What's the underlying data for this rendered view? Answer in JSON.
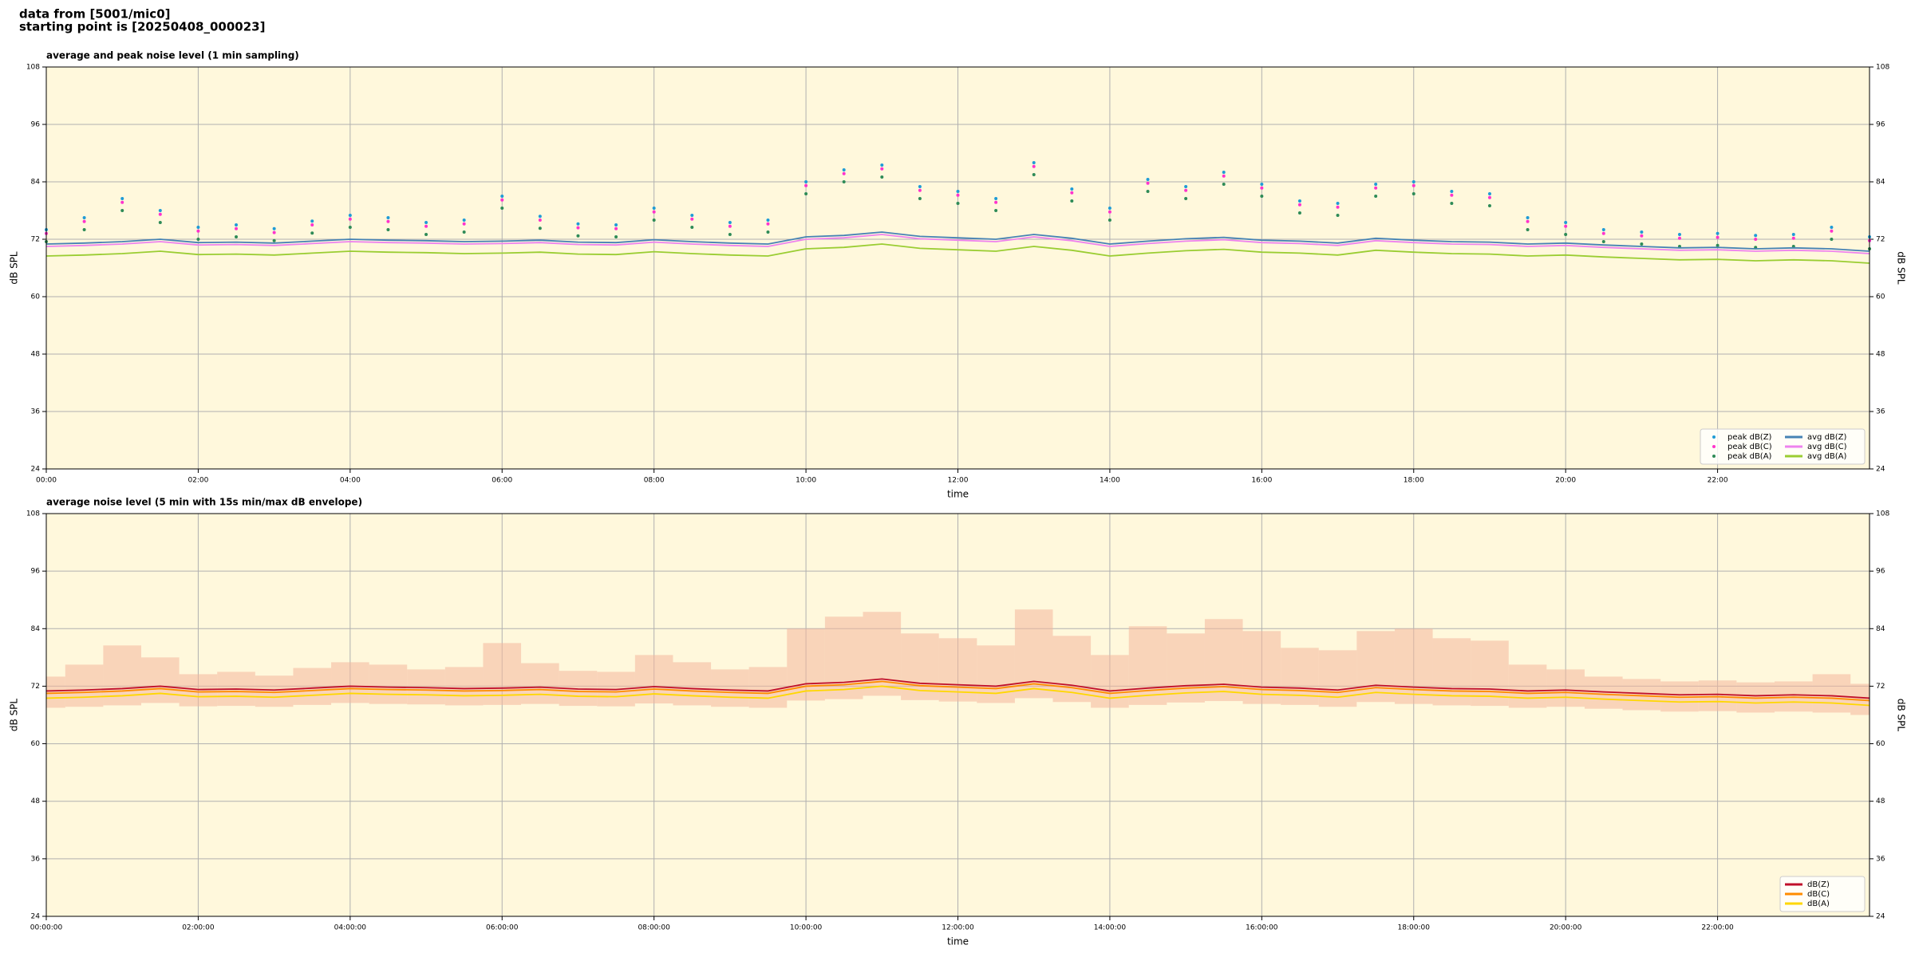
{
  "header": {
    "line1": "data from [5001/mic0]",
    "line2": "starting point is [20250408_000023]"
  },
  "chart_data": [
    {
      "type": "line",
      "title": "average and peak noise level (1 min sampling)",
      "xlabel": "time",
      "ylabel": "dB SPL",
      "background": "#fff8dc",
      "grid": true,
      "legend": "lower right",
      "legend_columns": 2,
      "xlim": [
        0,
        24
      ],
      "ylim": [
        24,
        108
      ],
      "yticks": [
        24,
        36,
        48,
        60,
        72,
        84,
        96,
        108
      ],
      "xticks": [
        {
          "value": 0,
          "label": "00:00"
        },
        {
          "value": 2,
          "label": "02:00"
        },
        {
          "value": 4,
          "label": "04:00"
        },
        {
          "value": 6,
          "label": "06:00"
        },
        {
          "value": 8,
          "label": "08:00"
        },
        {
          "value": 10,
          "label": "10:00"
        },
        {
          "value": 12,
          "label": "12:00"
        },
        {
          "value": 14,
          "label": "14:00"
        },
        {
          "value": 16,
          "label": "16:00"
        },
        {
          "value": 18,
          "label": "18:00"
        },
        {
          "value": 20,
          "label": "20:00"
        },
        {
          "value": 22,
          "label": "22:00"
        }
      ],
      "x": [
        0,
        0.5,
        1,
        1.5,
        2,
        2.5,
        3,
        3.5,
        4,
        4.5,
        5,
        5.5,
        6,
        6.5,
        7,
        7.5,
        8,
        8.5,
        9,
        9.5,
        10,
        10.5,
        11,
        11.5,
        12,
        12.5,
        13,
        13.5,
        14,
        14.5,
        15,
        15.5,
        16,
        16.5,
        17,
        17.5,
        18,
        18.5,
        19,
        19.5,
        20,
        20.5,
        21,
        21.5,
        22,
        22.5,
        23,
        23.5,
        24
      ],
      "series": [
        {
          "name": "peak dB(Z)",
          "style": "scatter",
          "color": "#1f9bd6",
          "values": [
            74.0,
            76.5,
            80.5,
            78.0,
            74.5,
            75.0,
            74.2,
            75.8,
            77.0,
            76.5,
            75.5,
            76.0,
            81.0,
            76.8,
            75.2,
            75.0,
            78.5,
            77.0,
            75.5,
            76.0,
            84.0,
            86.5,
            87.5,
            83.0,
            82.0,
            80.5,
            88.0,
            82.5,
            78.5,
            84.5,
            83.0,
            86.0,
            83.5,
            80.0,
            79.5,
            83.5,
            84.0,
            82.0,
            81.5,
            76.5,
            75.5,
            74.0,
            73.5,
            73.0,
            73.2,
            72.8,
            73.0,
            74.5,
            72.5
          ]
        },
        {
          "name": "peak dB(C)",
          "style": "scatter",
          "color": "#ff33cc",
          "values": [
            73.2,
            75.7,
            79.7,
            77.2,
            73.7,
            74.2,
            73.4,
            75.0,
            76.2,
            75.7,
            74.7,
            75.2,
            80.2,
            76.0,
            74.4,
            74.2,
            77.7,
            76.2,
            74.7,
            75.2,
            83.2,
            85.7,
            86.7,
            82.2,
            81.2,
            79.7,
            87.2,
            81.7,
            77.7,
            83.7,
            82.2,
            85.2,
            82.7,
            79.2,
            78.7,
            82.7,
            83.2,
            81.2,
            80.7,
            75.7,
            74.7,
            73.2,
            72.7,
            72.2,
            72.4,
            72.0,
            72.2,
            73.7,
            71.7
          ]
        },
        {
          "name": "peak dB(A)",
          "style": "scatter",
          "color": "#2e8b57",
          "values": [
            71.5,
            74.0,
            78.0,
            75.5,
            72.0,
            72.5,
            71.7,
            73.3,
            74.5,
            74.0,
            73.0,
            73.5,
            78.5,
            74.3,
            72.7,
            72.5,
            76.0,
            74.5,
            73.0,
            73.5,
            81.5,
            84.0,
            85.0,
            80.5,
            79.5,
            78.0,
            85.5,
            80.0,
            76.0,
            82.0,
            80.5,
            83.5,
            81.0,
            77.5,
            77.0,
            81.0,
            81.5,
            79.5,
            79.0,
            74.0,
            73.0,
            71.5,
            71.0,
            70.5,
            70.7,
            70.3,
            70.5,
            72.0,
            70.0
          ]
        },
        {
          "name": "avg dB(Z)",
          "style": "line",
          "color": "#4682b4",
          "values": [
            71.0,
            71.2,
            71.5,
            72.0,
            71.3,
            71.4,
            71.2,
            71.6,
            72.0,
            71.8,
            71.7,
            71.5,
            71.6,
            71.8,
            71.4,
            71.3,
            71.9,
            71.5,
            71.2,
            71.0,
            72.5,
            72.8,
            73.5,
            72.6,
            72.3,
            72.0,
            73.0,
            72.2,
            71.0,
            71.6,
            72.1,
            72.4,
            71.8,
            71.6,
            71.2,
            72.2,
            71.8,
            71.5,
            71.4,
            71.0,
            71.2,
            70.8,
            70.5,
            70.2,
            70.3,
            70.0,
            70.2,
            70.0,
            69.5
          ]
        },
        {
          "name": "avg dB(C)",
          "style": "line",
          "color": "#ee82ee",
          "values": [
            70.5,
            70.7,
            71.0,
            71.5,
            70.8,
            70.9,
            70.7,
            71.1,
            71.5,
            71.3,
            71.2,
            71.0,
            71.1,
            71.3,
            70.9,
            70.8,
            71.4,
            71.0,
            70.7,
            70.5,
            72.0,
            72.3,
            73.0,
            72.1,
            71.8,
            71.5,
            72.5,
            71.7,
            70.5,
            71.1,
            71.6,
            71.9,
            71.3,
            71.1,
            70.7,
            71.7,
            71.3,
            71.0,
            70.9,
            70.5,
            70.7,
            70.3,
            70.0,
            69.7,
            69.8,
            69.5,
            69.7,
            69.5,
            69.0
          ]
        },
        {
          "name": "avg dB(A)",
          "style": "line",
          "color": "#9acd32",
          "values": [
            68.5,
            68.7,
            69.0,
            69.5,
            68.8,
            68.9,
            68.7,
            69.1,
            69.5,
            69.3,
            69.2,
            69.0,
            69.1,
            69.3,
            68.9,
            68.8,
            69.4,
            69.0,
            68.7,
            68.5,
            70.0,
            70.3,
            71.0,
            70.1,
            69.8,
            69.5,
            70.5,
            69.7,
            68.5,
            69.1,
            69.6,
            69.9,
            69.3,
            69.1,
            68.7,
            69.7,
            69.3,
            69.0,
            68.9,
            68.5,
            68.7,
            68.3,
            68.0,
            67.7,
            67.8,
            67.5,
            67.7,
            67.5,
            67.0
          ]
        }
      ]
    },
    {
      "type": "line",
      "title": "average noise level (5 min with 15s min/max dB envelope)",
      "xlabel": "time",
      "ylabel": "dB SPL",
      "background": "#fff8dc",
      "grid": true,
      "legend": "lower right",
      "legend_columns": 1,
      "xlim": [
        0,
        24
      ],
      "ylim": [
        24,
        108
      ],
      "yticks": [
        24,
        36,
        48,
        60,
        72,
        84,
        96,
        108
      ],
      "xticks": [
        {
          "value": 0,
          "label": "00:00:00"
        },
        {
          "value": 2,
          "label": "02:00:00"
        },
        {
          "value": 4,
          "label": "04:00:00"
        },
        {
          "value": 6,
          "label": "06:00:00"
        },
        {
          "value": 8,
          "label": "08:00:00"
        },
        {
          "value": 10,
          "label": "10:00:00"
        },
        {
          "value": 12,
          "label": "12:00:00"
        },
        {
          "value": 14,
          "label": "14:00:00"
        },
        {
          "value": 16,
          "label": "16:00:00"
        },
        {
          "value": 18,
          "label": "18:00:00"
        },
        {
          "value": 20,
          "label": "20:00:00"
        },
        {
          "value": 22,
          "label": "22:00:00"
        }
      ],
      "x": [
        0,
        0.5,
        1,
        1.5,
        2,
        2.5,
        3,
        3.5,
        4,
        4.5,
        5,
        5.5,
        6,
        6.5,
        7,
        7.5,
        8,
        8.5,
        9,
        9.5,
        10,
        10.5,
        11,
        11.5,
        12,
        12.5,
        13,
        13.5,
        14,
        14.5,
        15,
        15.5,
        16,
        16.5,
        17,
        17.5,
        18,
        18.5,
        19,
        19.5,
        20,
        20.5,
        21,
        21.5,
        22,
        22.5,
        23,
        23.5,
        24
      ],
      "envelope": {
        "color": "#f4b69c",
        "max": [
          74.0,
          76.5,
          80.5,
          78.0,
          74.5,
          75.0,
          74.2,
          75.8,
          77.0,
          76.5,
          75.5,
          76.0,
          81.0,
          76.8,
          75.2,
          75.0,
          78.5,
          77.0,
          75.5,
          76.0,
          84.0,
          86.5,
          87.5,
          83.0,
          82.0,
          80.5,
          88.0,
          82.5,
          78.5,
          84.5,
          83.0,
          86.0,
          83.5,
          80.0,
          79.5,
          83.5,
          84.0,
          82.0,
          81.5,
          76.5,
          75.5,
          74.0,
          73.5,
          73.0,
          73.2,
          72.8,
          73.0,
          74.5,
          72.5
        ],
        "min": [
          67.5,
          67.7,
          68.0,
          68.5,
          67.8,
          67.9,
          67.7,
          68.1,
          68.5,
          68.3,
          68.2,
          68.0,
          68.1,
          68.3,
          67.9,
          67.8,
          68.4,
          68.0,
          67.7,
          67.5,
          69.0,
          69.3,
          70.0,
          69.1,
          68.8,
          68.5,
          69.5,
          68.7,
          67.5,
          68.1,
          68.6,
          68.9,
          68.3,
          68.1,
          67.7,
          68.7,
          68.3,
          68.0,
          67.9,
          67.5,
          67.7,
          67.3,
          67.0,
          66.7,
          66.8,
          66.5,
          66.7,
          66.5,
          66.0
        ]
      },
      "series": [
        {
          "name": "dB(Z)",
          "style": "line",
          "color": "#c0102a",
          "values": [
            71.0,
            71.2,
            71.5,
            72.0,
            71.3,
            71.4,
            71.2,
            71.6,
            72.0,
            71.8,
            71.7,
            71.5,
            71.6,
            71.8,
            71.4,
            71.3,
            71.9,
            71.5,
            71.2,
            71.0,
            72.5,
            72.8,
            73.5,
            72.6,
            72.3,
            72.0,
            73.0,
            72.2,
            71.0,
            71.6,
            72.1,
            72.4,
            71.8,
            71.6,
            71.2,
            72.2,
            71.8,
            71.5,
            71.4,
            71.0,
            71.2,
            70.8,
            70.5,
            70.2,
            70.3,
            70.0,
            70.2,
            70.0,
            69.5
          ]
        },
        {
          "name": "dB(C)",
          "style": "line",
          "color": "#ff8c00",
          "values": [
            70.5,
            70.7,
            71.0,
            71.5,
            70.8,
            70.9,
            70.7,
            71.1,
            71.5,
            71.3,
            71.2,
            71.0,
            71.1,
            71.3,
            70.9,
            70.8,
            71.4,
            71.0,
            70.7,
            70.5,
            72.0,
            72.3,
            73.0,
            72.1,
            71.8,
            71.5,
            72.5,
            71.7,
            70.5,
            71.1,
            71.6,
            71.9,
            71.3,
            71.1,
            70.7,
            71.7,
            71.3,
            71.0,
            70.9,
            70.5,
            70.7,
            70.3,
            70.0,
            69.7,
            69.8,
            69.5,
            69.7,
            69.5,
            69.0
          ]
        },
        {
          "name": "dB(A)",
          "style": "line",
          "color": "#ffd700",
          "values": [
            69.5,
            69.7,
            70.0,
            70.5,
            69.8,
            69.9,
            69.7,
            70.1,
            70.5,
            70.3,
            70.2,
            70.0,
            70.1,
            70.3,
            69.9,
            69.8,
            70.4,
            70.0,
            69.7,
            69.5,
            71.0,
            71.3,
            72.0,
            71.1,
            70.8,
            70.5,
            71.5,
            70.7,
            69.5,
            70.1,
            70.6,
            70.9,
            70.3,
            70.1,
            69.7,
            70.7,
            70.3,
            70.0,
            69.9,
            69.5,
            69.7,
            69.3,
            69.0,
            68.7,
            68.8,
            68.5,
            68.7,
            68.5,
            68.0
          ]
        }
      ]
    }
  ]
}
